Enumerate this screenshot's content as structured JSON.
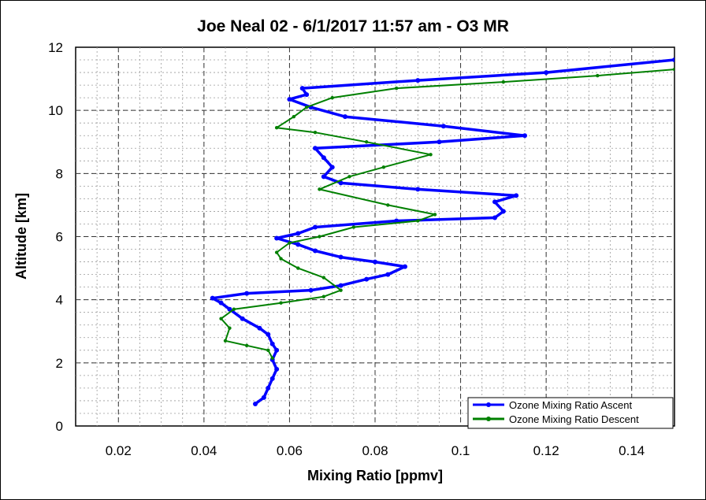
{
  "chart_data": {
    "type": "line",
    "title": "Joe Neal 02 - 6/1/2017 11:57 am - O3 MR",
    "xlabel": "Mixing Ratio [ppmv]",
    "ylabel": "Altitude [km]",
    "xlim": [
      0.01,
      0.15
    ],
    "ylim": [
      0,
      12
    ],
    "x_ticks": [
      0.02,
      0.04,
      0.06,
      0.08,
      0.1,
      0.12,
      0.14
    ],
    "x_tick_labels": [
      "0.02",
      "0.04",
      "0.06",
      "0.08",
      "0.1",
      "0.12",
      "0.14"
    ],
    "y_ticks": [
      0,
      2,
      4,
      6,
      8,
      10,
      12
    ],
    "y_tick_labels": [
      "0",
      "2",
      "4",
      "6",
      "8",
      "10",
      "12"
    ],
    "grid": true,
    "legend_position": "bottom-right",
    "series": [
      {
        "name": "Ozone Mixing Ratio Ascent",
        "color": "#0000ff",
        "points": [
          [
            0.052,
            0.7
          ],
          [
            0.054,
            0.9
          ],
          [
            0.055,
            1.2
          ],
          [
            0.056,
            1.5
          ],
          [
            0.057,
            1.8
          ],
          [
            0.056,
            2.1
          ],
          [
            0.057,
            2.4
          ],
          [
            0.056,
            2.6
          ],
          [
            0.055,
            2.9
          ],
          [
            0.053,
            3.1
          ],
          [
            0.049,
            3.4
          ],
          [
            0.046,
            3.7
          ],
          [
            0.044,
            3.9
          ],
          [
            0.042,
            4.05
          ],
          [
            0.05,
            4.2
          ],
          [
            0.065,
            4.3
          ],
          [
            0.072,
            4.45
          ],
          [
            0.078,
            4.65
          ],
          [
            0.083,
            4.8
          ],
          [
            0.087,
            5.05
          ],
          [
            0.08,
            5.2
          ],
          [
            0.072,
            5.35
          ],
          [
            0.066,
            5.55
          ],
          [
            0.062,
            5.75
          ],
          [
            0.057,
            5.95
          ],
          [
            0.062,
            6.1
          ],
          [
            0.066,
            6.3
          ],
          [
            0.085,
            6.5
          ],
          [
            0.108,
            6.6
          ],
          [
            0.11,
            6.8
          ],
          [
            0.108,
            7.1
          ],
          [
            0.113,
            7.3
          ],
          [
            0.09,
            7.5
          ],
          [
            0.072,
            7.7
          ],
          [
            0.068,
            7.9
          ],
          [
            0.07,
            8.2
          ],
          [
            0.068,
            8.5
          ],
          [
            0.066,
            8.8
          ],
          [
            0.095,
            9.0
          ],
          [
            0.115,
            9.2
          ],
          [
            0.096,
            9.5
          ],
          [
            0.073,
            9.8
          ],
          [
            0.065,
            10.1
          ],
          [
            0.06,
            10.35
          ],
          [
            0.064,
            10.5
          ],
          [
            0.063,
            10.7
          ],
          [
            0.09,
            10.95
          ],
          [
            0.12,
            11.2
          ],
          [
            0.15,
            11.6
          ]
        ]
      },
      {
        "name": "Ozone Mixing Ratio Descent",
        "color": "#008000",
        "points": [
          [
            0.056,
            2.15
          ],
          [
            0.055,
            2.4
          ],
          [
            0.05,
            2.55
          ],
          [
            0.045,
            2.7
          ],
          [
            0.046,
            3.1
          ],
          [
            0.044,
            3.4
          ],
          [
            0.047,
            3.7
          ],
          [
            0.058,
            3.9
          ],
          [
            0.068,
            4.1
          ],
          [
            0.072,
            4.3
          ],
          [
            0.068,
            4.7
          ],
          [
            0.062,
            5.0
          ],
          [
            0.058,
            5.3
          ],
          [
            0.057,
            5.5
          ],
          [
            0.06,
            5.8
          ],
          [
            0.067,
            6.0
          ],
          [
            0.075,
            6.3
          ],
          [
            0.09,
            6.5
          ],
          [
            0.094,
            6.7
          ],
          [
            0.083,
            7.0
          ],
          [
            0.067,
            7.5
          ],
          [
            0.074,
            7.9
          ],
          [
            0.082,
            8.2
          ],
          [
            0.093,
            8.6
          ],
          [
            0.078,
            9.0
          ],
          [
            0.066,
            9.3
          ],
          [
            0.057,
            9.45
          ],
          [
            0.061,
            9.8
          ],
          [
            0.064,
            10.1
          ],
          [
            0.07,
            10.4
          ],
          [
            0.085,
            10.7
          ],
          [
            0.11,
            10.9
          ],
          [
            0.132,
            11.1
          ],
          [
            0.15,
            11.3
          ]
        ]
      }
    ]
  }
}
